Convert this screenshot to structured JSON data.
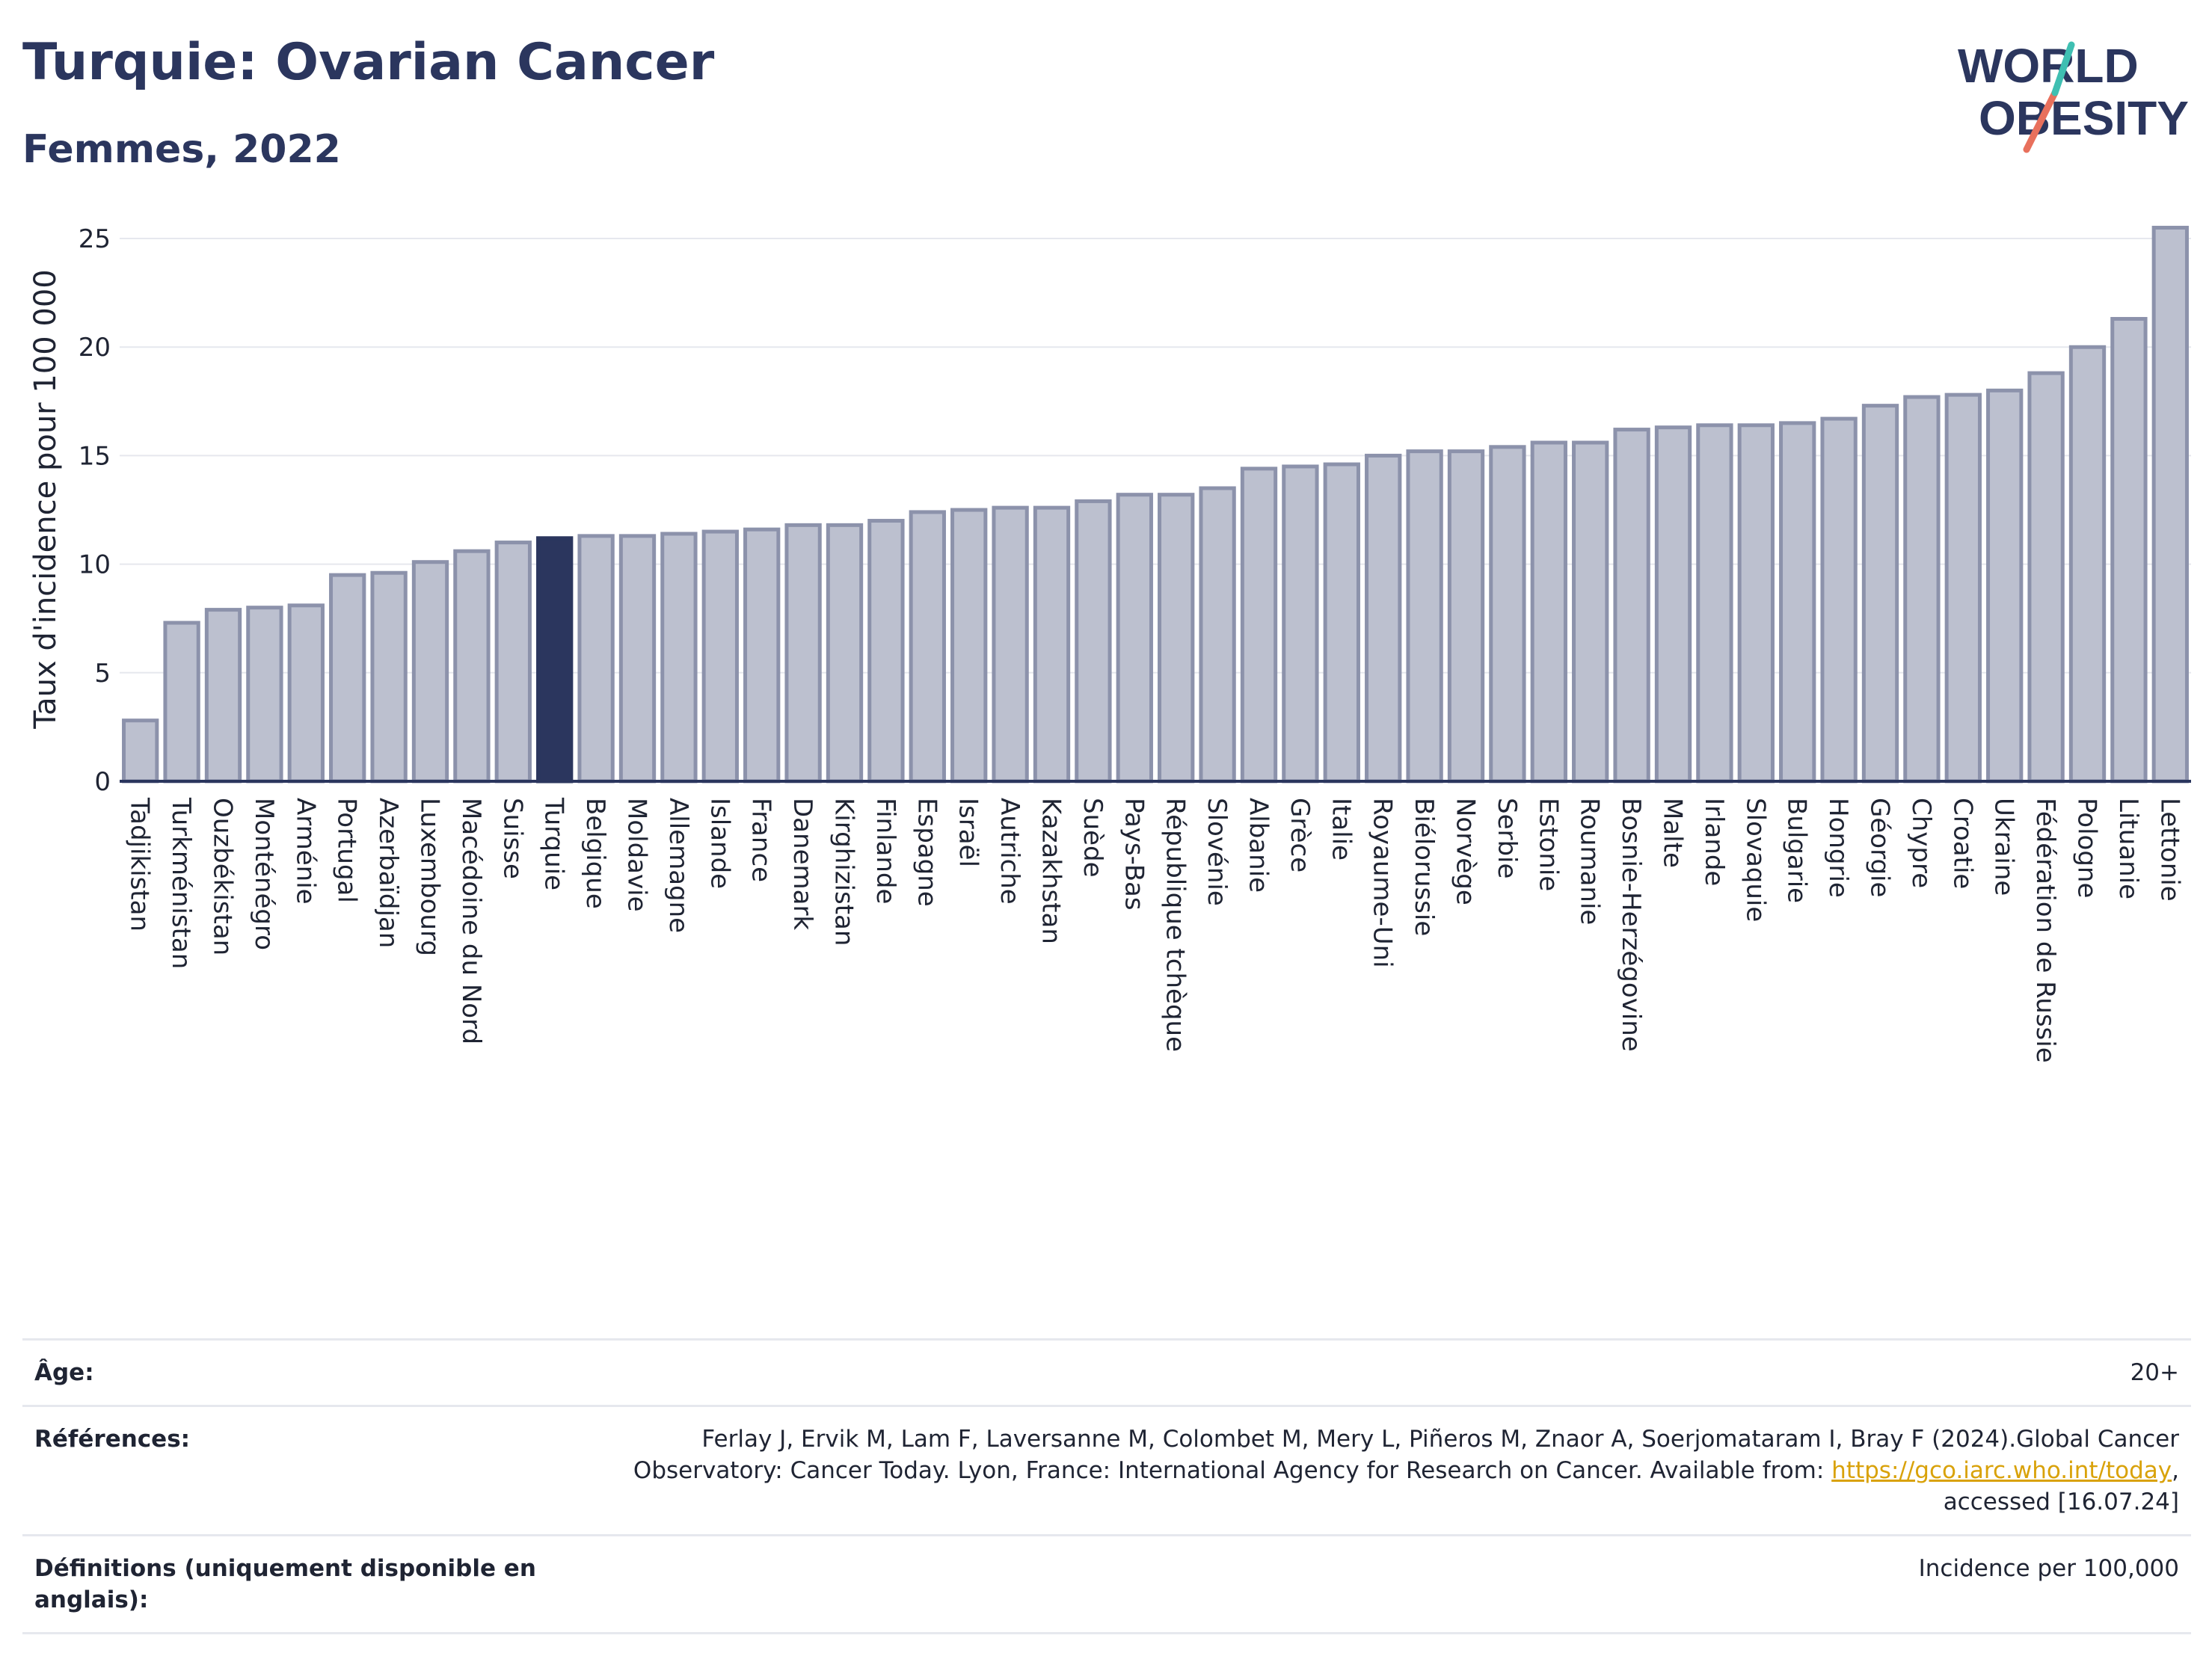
{
  "title": "Turquie: Ovarian Cancer",
  "subtitle": "Femmes, 2022",
  "logo": {
    "line1": "WORLD",
    "line2": "OBESITY"
  },
  "chart_data": {
    "type": "bar",
    "ylabel": "Taux d'incidence pour 100 000",
    "ylim": [
      0,
      26
    ],
    "yticks": [
      0,
      5,
      10,
      15,
      20,
      25
    ],
    "grid": true,
    "highlight": "Turquie",
    "colors": {
      "bar": "#bcc0cf",
      "bar_border": "#8c92ab",
      "highlight": "#2b365e",
      "grid": "#e6e8ee",
      "axis": "#2b365e"
    },
    "categories": [
      "Tadjikistan",
      "Turkménistan",
      "Ouzbékistan",
      "Monténégro",
      "Arménie",
      "Portugal",
      "Azerbaïdjan",
      "Luxembourg",
      "Macédoine du Nord",
      "Suisse",
      "Turquie",
      "Belgique",
      "Moldavie",
      "Allemagne",
      "Islande",
      "France",
      "Danemark",
      "Kirghizistan",
      "Finlande",
      "Espagne",
      "Israël",
      "Autriche",
      "Kazakhstan",
      "Suède",
      "Pays-Bas",
      "République tchèque",
      "Slovénie",
      "Albanie",
      "Grèce",
      "Italie",
      "Royaume-Uni",
      "Biélorussie",
      "Norvège",
      "Serbie",
      "Estonie",
      "Roumanie",
      "Bosnie-Herzégovine",
      "Malte",
      "Irlande",
      "Slovaquie",
      "Bulgarie",
      "Hongrie",
      "Géorgie",
      "Chypre",
      "Croatie",
      "Ukraine",
      "Fédération de Russie",
      "Pologne",
      "Lituanie",
      "Lettonie"
    ],
    "values": [
      2.8,
      7.3,
      7.9,
      8.0,
      8.1,
      9.5,
      9.6,
      10.1,
      10.6,
      11.0,
      11.2,
      11.3,
      11.3,
      11.4,
      11.5,
      11.6,
      11.8,
      11.8,
      12.0,
      12.4,
      12.5,
      12.6,
      12.6,
      12.9,
      13.2,
      13.2,
      13.5,
      14.4,
      14.5,
      14.6,
      15.0,
      15.2,
      15.2,
      15.4,
      15.6,
      15.6,
      16.2,
      16.3,
      16.4,
      16.4,
      16.5,
      16.7,
      17.3,
      17.7,
      17.8,
      18.0,
      18.8,
      20.0,
      21.3,
      25.5
    ]
  },
  "footer": {
    "age_label": "Âge:",
    "age_value": "20+",
    "ref_label": "Références:",
    "ref_text": "Ferlay J, Ervik M, Lam F, Laversanne M, Colombet M, Mery L, Piñeros M, Znaor A, Soerjomataram I, Bray F (2024).Global Cancer Observatory: Cancer Today. Lyon, France: International Agency for Research on Cancer. Available from: ",
    "ref_link": "https://gco.iarc.who.int/today",
    "ref_tail": ", accessed [16.07.24]",
    "def_label": "Définitions (uniquement disponible en anglais):",
    "def_value": "Incidence per 100,000"
  }
}
